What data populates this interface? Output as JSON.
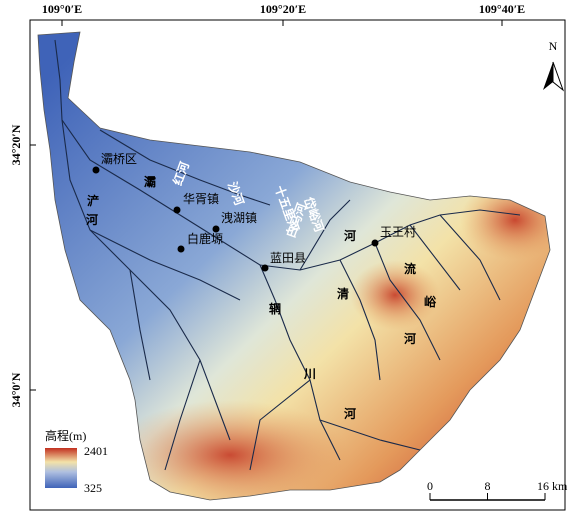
{
  "map": {
    "lon_labels": [
      "109°0′E",
      "109°20′E",
      "109°40′E"
    ],
    "lat_labels": [
      "34°20′N",
      "34°0′N"
    ],
    "north": "N",
    "places": [
      "灞桥区",
      "华胥镇",
      "洩湖镇",
      "白鹿塬",
      "蓝田县",
      "玉王村"
    ],
    "rivers": [
      "灞",
      "浐",
      "河",
      "红河",
      "沙河",
      "十五里河",
      "岱峪河",
      "白马河",
      "河",
      "清",
      "流",
      "峪",
      "河",
      "辋",
      "川",
      "河"
    ],
    "legend": {
      "title": "高程(m)",
      "max": 2401,
      "min": 325
    },
    "scale": {
      "ticks": [
        0,
        8,
        {
          "value": 16,
          "label": "16 km"
        }
      ]
    }
  }
}
